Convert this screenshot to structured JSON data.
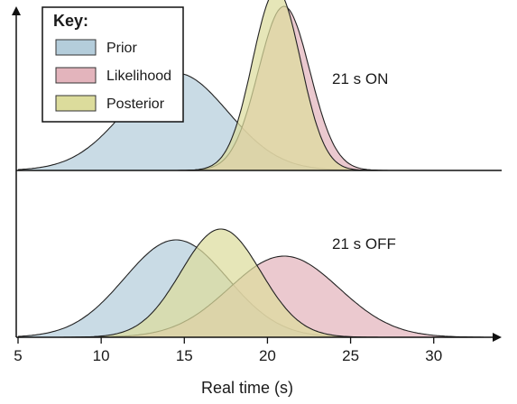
{
  "chart_data": {
    "type": "area",
    "xlabel": "Real time (s)",
    "xlim": [
      5,
      33
    ],
    "x_ticks": [
      "5",
      "10",
      "15",
      "20",
      "25",
      "30"
    ],
    "legend": {
      "title": "Key:",
      "placement": "top-left",
      "entries": [
        "Prior",
        "Likelihood",
        "Posterior"
      ]
    },
    "colors": {
      "Prior": "#b4cddb",
      "Likelihood": "#e3b4bc",
      "Posterior": "#dcdc9c",
      "axis": "#111111"
    },
    "panels": [
      {
        "label": "21 s ON",
        "series": [
          {
            "name": "Prior",
            "mean": 14.5,
            "sd": 3.1,
            "peak": 0.27
          },
          {
            "name": "Likelihood",
            "mean": 21.0,
            "sd": 1.55,
            "peak": 0.455
          },
          {
            "name": "Posterior",
            "mean": 20.55,
            "sd": 1.45,
            "peak": 0.5
          }
        ]
      },
      {
        "label": "21 s OFF",
        "series": [
          {
            "name": "Prior",
            "mean": 14.5,
            "sd": 3.1,
            "peak": 0.27
          },
          {
            "name": "Likelihood",
            "mean": 21.0,
            "sd": 3.3,
            "peak": 0.225
          },
          {
            "name": "Posterior",
            "mean": 17.2,
            "sd": 2.4,
            "peak": 0.3
          }
        ]
      }
    ]
  }
}
